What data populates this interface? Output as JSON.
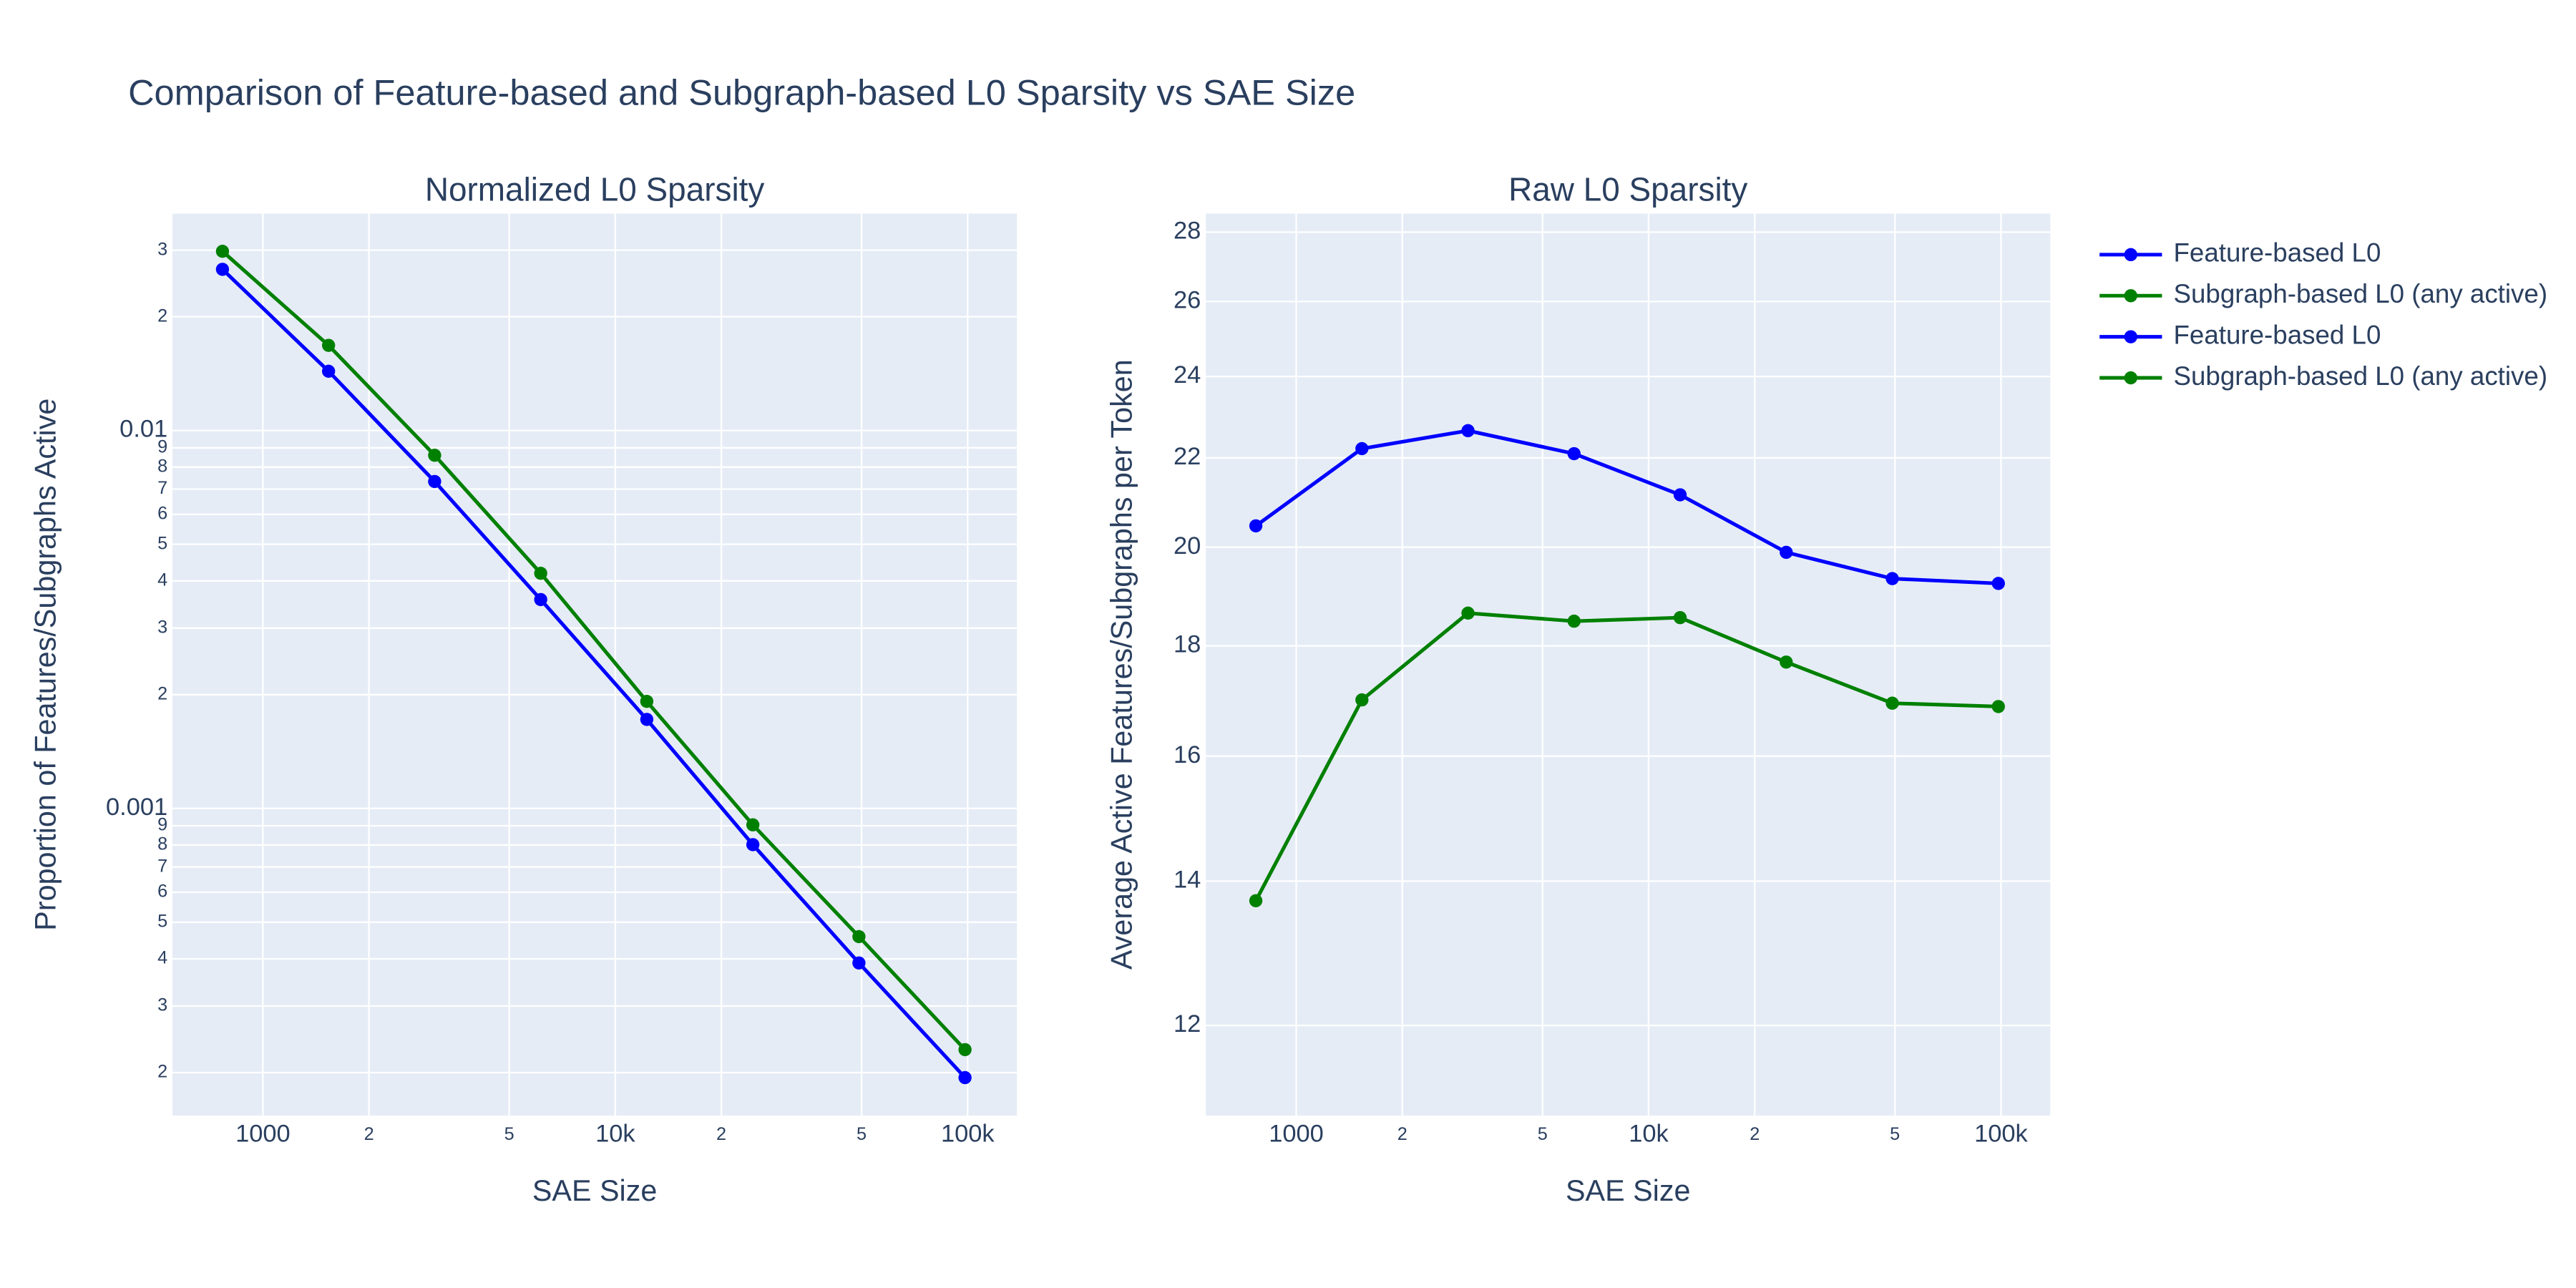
{
  "title": "Comparison of Feature-based and Subgraph-based L0 Sparsity vs SAE Size",
  "chart_data": [
    {
      "type": "line",
      "title": "Normalized L0 Sparsity",
      "xlabel": "SAE Size",
      "ylabel": "Proportion of Features/Subgraphs Active",
      "x": [
        768,
        1536,
        3072,
        6144,
        12288,
        24576,
        49152,
        98304
      ],
      "series": [
        {
          "name": "Feature-based L0",
          "color": "#0000ff",
          "values": [
            0.0267,
            0.01435,
            0.00733,
            0.00357,
            0.00172,
            0.000802,
            0.00039,
            0.000194
          ]
        },
        {
          "name": "Subgraph-based L0 (any active)",
          "color": "#008000",
          "values": [
            0.0298,
            0.0168,
            0.0086,
            0.00419,
            0.00192,
            0.000905,
            0.000458,
            0.00023
          ]
        }
      ],
      "xlog": true,
      "ylog": true,
      "grid": true,
      "xlim": [
        554,
        138000
      ],
      "ylim": [
        0.000154,
        0.0375
      ],
      "xticks": [
        1000,
        {
          "value": 2000,
          "label": "2"
        },
        {
          "value": 5000,
          "label": "5"
        },
        {
          "value": 10000,
          "label": "10k"
        },
        {
          "value": 20000,
          "label": "2"
        },
        {
          "value": 50000,
          "label": "5"
        },
        {
          "value": 100000,
          "label": "100k"
        }
      ],
      "yticks": [
        {
          "value": 0.0002,
          "label": "2"
        },
        {
          "value": 0.0003,
          "label": "3"
        },
        {
          "value": 0.0004,
          "label": "4"
        },
        {
          "value": 0.0005,
          "label": "5"
        },
        {
          "value": 0.0006,
          "label": "6"
        },
        {
          "value": 0.0007,
          "label": "7"
        },
        {
          "value": 0.0008,
          "label": "8"
        },
        {
          "value": 0.0009,
          "label": "9"
        },
        0.001,
        {
          "value": 0.002,
          "label": "2"
        },
        {
          "value": 0.003,
          "label": "3"
        },
        {
          "value": 0.004,
          "label": "4"
        },
        {
          "value": 0.005,
          "label": "5"
        },
        {
          "value": 0.006,
          "label": "6"
        },
        {
          "value": 0.007,
          "label": "7"
        },
        {
          "value": 0.008,
          "label": "8"
        },
        {
          "value": 0.009,
          "label": "9"
        },
        0.01,
        {
          "value": 0.02,
          "label": "2"
        },
        {
          "value": 0.03,
          "label": "3"
        }
      ]
    },
    {
      "type": "line",
      "title": "Raw L0 Sparsity",
      "xlabel": "SAE Size",
      "ylabel": "Average Active Features/Subgraphs per Token",
      "x": [
        768,
        1536,
        3072,
        6144,
        12288,
        24576,
        49152,
        98304
      ],
      "series": [
        {
          "name": "Feature-based L0",
          "color": "#0000ff",
          "values": [
            20.46,
            22.22,
            22.65,
            22.1,
            21.15,
            19.89,
            19.34,
            19.24
          ]
        },
        {
          "name": "Subgraph-based L0 (any active)",
          "color": "#008000",
          "values": [
            13.71,
            16.99,
            18.64,
            18.48,
            18.55,
            17.69,
            16.93,
            16.87
          ]
        }
      ],
      "xlog": true,
      "ylog": true,
      "grid": true,
      "xlim": [
        554,
        138000
      ],
      "ylim": [
        10.9,
        28.56
      ],
      "xticks": [
        1000,
        {
          "value": 2000,
          "label": "2"
        },
        {
          "value": 5000,
          "label": "5"
        },
        {
          "value": 10000,
          "label": "10k"
        },
        {
          "value": 20000,
          "label": "2"
        },
        {
          "value": 50000,
          "label": "5"
        },
        {
          "value": 100000,
          "label": "100k"
        }
      ],
      "yticks": [
        12,
        14,
        16,
        18,
        20,
        22,
        24,
        26,
        28
      ]
    }
  ]
}
